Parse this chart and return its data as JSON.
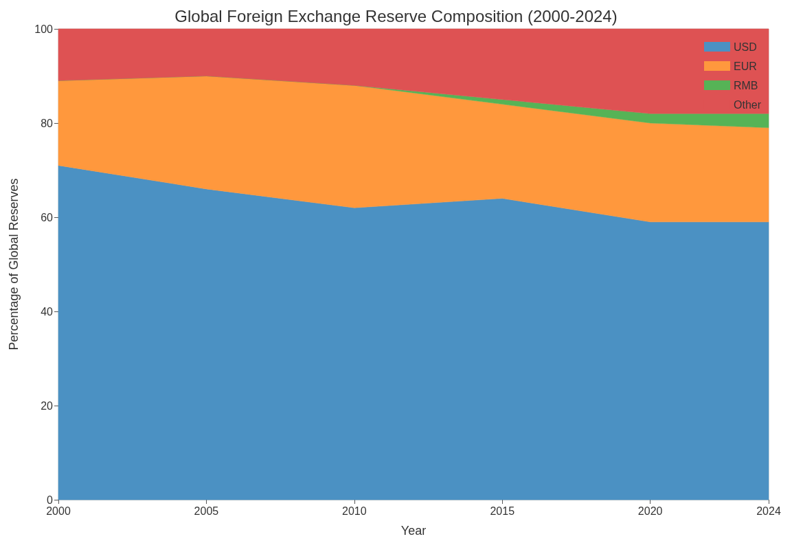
{
  "chart_data": {
    "type": "area",
    "title": "Global Foreign Exchange Reserve Composition (2000-2024)",
    "xlabel": "Year",
    "ylabel": "Percentage of Global Reserves",
    "x": [
      2000,
      2005,
      2010,
      2015,
      2020,
      2024
    ],
    "stacked": true,
    "series": [
      {
        "name": "USD",
        "color": "#4b91c3",
        "values": [
          71,
          66,
          62,
          64,
          59,
          59
        ]
      },
      {
        "name": "EUR",
        "color": "#ff983d",
        "values": [
          18,
          24,
          26,
          20,
          21,
          20
        ]
      },
      {
        "name": "RMB",
        "color": "#56b356",
        "values": [
          0,
          0,
          0,
          1,
          2,
          3
        ]
      },
      {
        "name": "Other",
        "color": "#de5253",
        "values": [
          11,
          10,
          12,
          15,
          18,
          18
        ]
      }
    ],
    "xlim": [
      2000,
      2024
    ],
    "xticks": [
      2000,
      2005,
      2010,
      2015,
      2020,
      2024
    ],
    "ylim": [
      0,
      100
    ],
    "yticks": [
      0,
      20,
      40,
      60,
      80,
      100
    ],
    "legend": "top right"
  }
}
